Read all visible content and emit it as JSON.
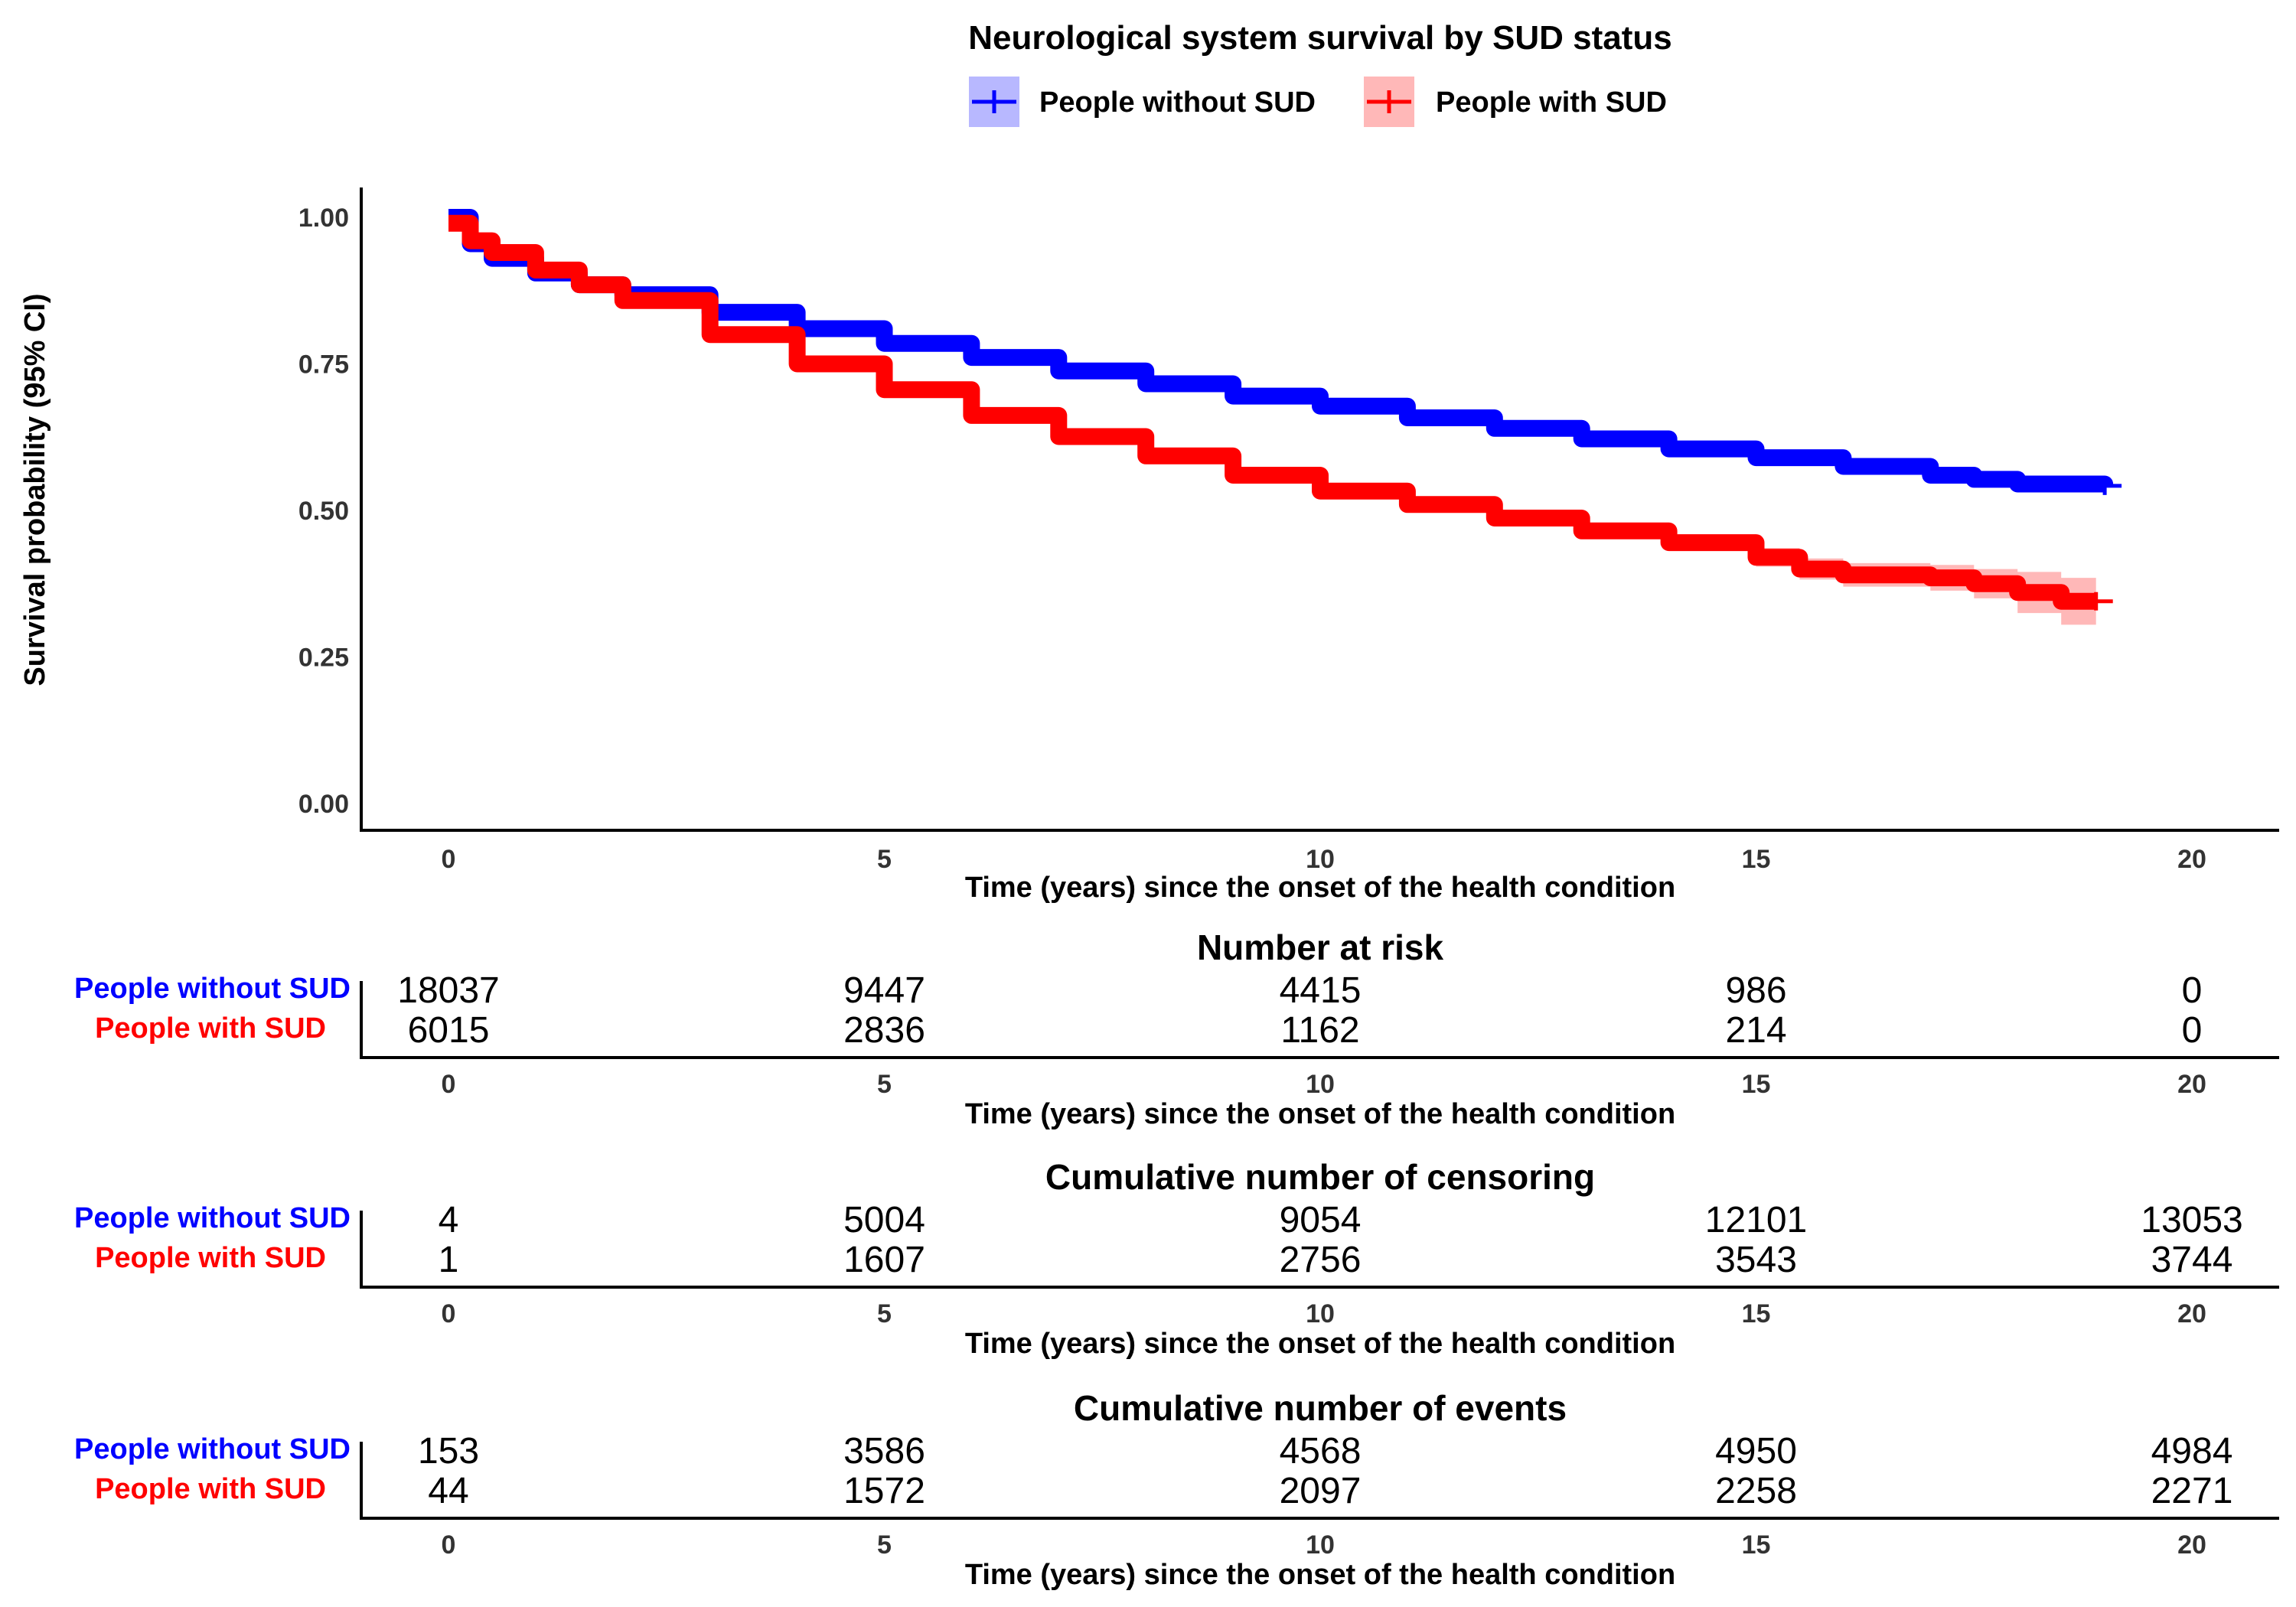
{
  "chart_data": {
    "type": "line",
    "title": "Neurological system survival by SUD status",
    "xlabel": "Time (years) since the onset of the health condition",
    "ylabel": "Survival probability (95% CI)",
    "xlim": [
      0,
      20
    ],
    "ylim": [
      0,
      1
    ],
    "xticks": [
      0,
      5,
      10,
      15,
      20
    ],
    "yticks": [
      "0.00",
      "0.25",
      "0.50",
      "0.75",
      "1.00"
    ],
    "grid": false,
    "legend_position": "top",
    "series": [
      {
        "name": "People without SUD",
        "color": "#0000FF",
        "x": [
          0,
          0.25,
          0.5,
          1,
          1.5,
          2,
          3,
          4,
          5,
          6,
          7,
          8,
          9,
          10,
          11,
          12,
          13,
          14,
          15,
          16,
          17,
          17.5,
          18,
          18.5,
          19
        ],
        "y": [
          1.0,
          0.955,
          0.93,
          0.905,
          0.885,
          0.868,
          0.838,
          0.81,
          0.785,
          0.761,
          0.738,
          0.716,
          0.695,
          0.678,
          0.658,
          0.64,
          0.622,
          0.605,
          0.59,
          0.575,
          0.56,
          0.553,
          0.545,
          0.545,
          0.542
        ],
        "ci_halfwidth": [
          0.004,
          0.004,
          0.004,
          0.004,
          0.004,
          0.004,
          0.004,
          0.005,
          0.005,
          0.005,
          0.005,
          0.006,
          0.006,
          0.006,
          0.007,
          0.007,
          0.008,
          0.008,
          0.009,
          0.01,
          0.011,
          0.012,
          0.013,
          0.013,
          0.013
        ]
      },
      {
        "name": "People with SUD",
        "color": "#FF0000",
        "x": [
          0,
          0.25,
          0.5,
          1,
          1.5,
          2,
          3,
          4,
          5,
          6,
          7,
          8,
          9,
          10,
          11,
          12,
          13,
          14,
          15,
          15.5,
          16,
          16.5,
          17,
          17.5,
          18,
          18.5,
          18.9
        ],
        "y": [
          0.99,
          0.96,
          0.94,
          0.91,
          0.885,
          0.858,
          0.8,
          0.75,
          0.706,
          0.662,
          0.626,
          0.593,
          0.56,
          0.533,
          0.51,
          0.487,
          0.465,
          0.445,
          0.42,
          0.4,
          0.39,
          0.39,
          0.385,
          0.375,
          0.36,
          0.345,
          0.345
        ],
        "ci_halfwidth": [
          0.006,
          0.006,
          0.007,
          0.007,
          0.008,
          0.008,
          0.008,
          0.009,
          0.009,
          0.009,
          0.01,
          0.01,
          0.011,
          0.011,
          0.012,
          0.012,
          0.013,
          0.014,
          0.016,
          0.018,
          0.02,
          0.02,
          0.022,
          0.025,
          0.035,
          0.04,
          0.04
        ]
      }
    ],
    "tables": [
      {
        "title": "Number at risk",
        "rows": [
          {
            "name": "People without SUD",
            "values": [
              "18037",
              "9447",
              "4415",
              "986",
              "0"
            ]
          },
          {
            "name": "People with SUD",
            "values": [
              "6015",
              "2836",
              "1162",
              "214",
              "0"
            ]
          }
        ]
      },
      {
        "title": "Cumulative number of censoring",
        "rows": [
          {
            "name": "People without SUD",
            "values": [
              "4",
              "5004",
              "9054",
              "12101",
              "13053"
            ]
          },
          {
            "name": "People with SUD",
            "values": [
              "1",
              "1607",
              "2756",
              "3543",
              "3744"
            ]
          }
        ]
      },
      {
        "title": "Cumulative number of events",
        "rows": [
          {
            "name": "People without SUD",
            "values": [
              "153",
              "3586",
              "4568",
              "4950",
              "4984"
            ]
          },
          {
            "name": "People with SUD",
            "values": [
              "44",
              "1572",
              "2097",
              "2258",
              "2271"
            ]
          }
        ]
      }
    ]
  }
}
